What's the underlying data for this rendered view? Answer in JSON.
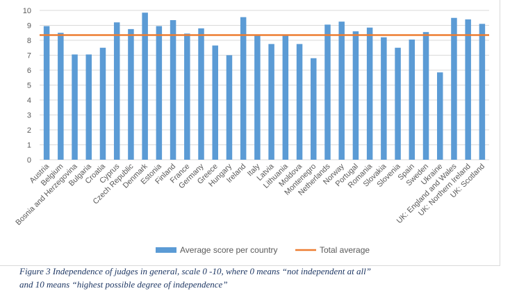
{
  "chart_data": {
    "type": "bar",
    "categories": [
      "Austria",
      "Belgium",
      "Bosnia and Herzegovina",
      "Bulgaria",
      "Croatia",
      "Cyprus",
      "Czech Republic",
      "Denmark",
      "Estonia",
      "Finland",
      "France",
      "Germany",
      "Greece",
      "Hungary",
      "Ireland",
      "Italy",
      "Latvia",
      "Lithuania",
      "Moldova",
      "Montenegro",
      "Netherlands",
      "Norway",
      "Portugal",
      "Romania",
      "Slovakia",
      "Slovenia",
      "Spain",
      "Sweden",
      "Ukraine",
      "UK: England and Wales",
      "UK: Northern Ireland",
      "UK: Scotland"
    ],
    "series": [
      {
        "name": "Average score per country",
        "type": "bar",
        "color": "#5b9bd5",
        "values": [
          8.95,
          8.5,
          7.05,
          7.05,
          7.5,
          9.2,
          8.75,
          9.85,
          8.95,
          9.35,
          8.45,
          8.8,
          7.65,
          7.0,
          9.55,
          8.3,
          7.75,
          8.3,
          7.75,
          6.8,
          9.05,
          9.25,
          8.6,
          8.85,
          8.2,
          7.5,
          8.05,
          8.55,
          5.85,
          9.5,
          9.4,
          9.1
        ]
      },
      {
        "name": "Total average",
        "type": "line",
        "color": "#ed7d31",
        "value": 8.35
      }
    ],
    "ylim": [
      0,
      10
    ],
    "yticks": [
      0,
      1,
      2,
      3,
      4,
      5,
      6,
      7,
      8,
      9,
      10
    ],
    "grid": true,
    "legend": "bottom"
  },
  "caption": {
    "line1": "Figure 3   Independence of judges in general, scale 0 -10, where 0 means “not independent at all”",
    "line2": "and 10 means “highest possible degree of independence”"
  }
}
